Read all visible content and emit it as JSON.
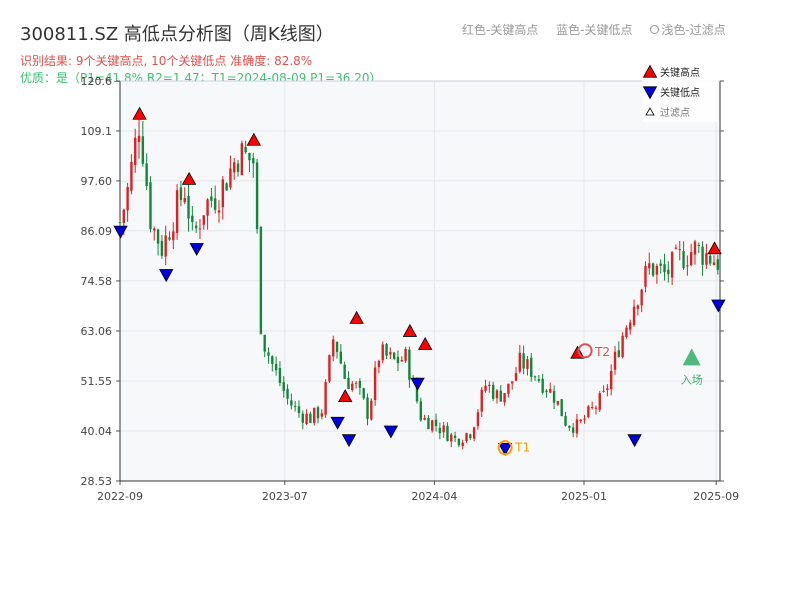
{
  "header": {
    "title": "300811.SZ 高低点分析图（周K线图）",
    "legend_red": "红色-关键高点",
    "legend_blue": "蓝色-关键低点",
    "legend_light": "浅色-过滤点",
    "result_line": "识别结果: 9个关键高点, 10个关键低点  准确度: 82.8%",
    "quality_line": "优质：是（P1=41.8%  R2=1.47；T1=2024-08-09 P1=36.20）"
  },
  "colors": {
    "up": "#e02020",
    "down": "#10883a",
    "high_marker": "#ff0000",
    "low_marker": "#0000dd",
    "entry": "#3cb371",
    "t1_ring": "#ff9900",
    "t2_ring": "#e05050"
  },
  "chart_data": {
    "type": "candlestick",
    "interval": "weekly",
    "ylim": [
      28.53,
      120.6
    ],
    "yticks": [
      "28.53",
      "40.04",
      "51.55",
      "63.06",
      "74.58",
      "86.09",
      "97.60",
      "109.1",
      "120.6"
    ],
    "xticks": [
      "2022-09",
      "2023-07",
      "2024-04",
      "2025-01",
      "2025-09"
    ],
    "x_range": [
      "2022-09-01",
      "2025-09-08"
    ],
    "grid": true,
    "legend_position": "top-right",
    "legend": [
      "关键高点",
      "关键低点",
      "过滤点"
    ],
    "close_path": [
      [
        "2022-09-02",
        88
      ],
      [
        "2022-09-16",
        96
      ],
      [
        "2022-10-07",
        112
      ],
      [
        "2022-10-28",
        88
      ],
      [
        "2022-11-18",
        82
      ],
      [
        "2022-12-09",
        90
      ],
      [
        "2022-12-30",
        96
      ],
      [
        "2023-01-13",
        84
      ],
      [
        "2023-02-03",
        92
      ],
      [
        "2023-03-03",
        95
      ],
      [
        "2023-04-07",
        104
      ],
      [
        "2023-05-05",
        102
      ],
      [
        "2023-05-19",
        62
      ],
      [
        "2023-06-09",
        55
      ],
      [
        "2023-07-07",
        47
      ],
      [
        "2023-07-28",
        44
      ],
      [
        "2023-08-18",
        43
      ],
      [
        "2023-09-08",
        45
      ],
      [
        "2023-09-29",
        62
      ],
      [
        "2023-10-20",
        52
      ],
      [
        "2023-11-10",
        50
      ],
      [
        "2023-12-01",
        44
      ],
      [
        "2023-12-22",
        58
      ],
      [
        "2024-01-19",
        56
      ],
      [
        "2024-02-09",
        57
      ],
      [
        "2024-03-08",
        43
      ],
      [
        "2024-03-29",
        42
      ],
      [
        "2024-04-19",
        40
      ],
      [
        "2024-05-10",
        38
      ],
      [
        "2024-06-07",
        40
      ],
      [
        "2024-07-05",
        51
      ],
      [
        "2024-07-26",
        48
      ],
      [
        "2024-08-16",
        50
      ],
      [
        "2024-09-06",
        56
      ],
      [
        "2024-09-27",
        54
      ],
      [
        "2024-10-18",
        51
      ],
      [
        "2024-11-08",
        48
      ],
      [
        "2024-11-29",
        42
      ],
      [
        "2024-12-20",
        41
      ],
      [
        "2025-01-10",
        44
      ],
      [
        "2025-02-07",
        48
      ],
      [
        "2025-03-07",
        60
      ],
      [
        "2025-04-04",
        70
      ],
      [
        "2025-05-02",
        78
      ],
      [
        "2025-05-30",
        76
      ],
      [
        "2025-06-27",
        80
      ],
      [
        "2025-07-25",
        82
      ],
      [
        "2025-09-05",
        79
      ]
    ],
    "key_highs": [
      {
        "date": "2022-10-07",
        "value": 113
      },
      {
        "date": "2023-01-06",
        "value": 98
      },
      {
        "date": "2023-05-05",
        "value": 107
      },
      {
        "date": "2023-10-20",
        "value": 48
      },
      {
        "date": "2023-11-10",
        "value": 66
      },
      {
        "date": "2024-02-16",
        "value": 63
      },
      {
        "date": "2024-03-15",
        "value": 60
      },
      {
        "date": "2024-12-20",
        "value": 58
      },
      {
        "date": "2025-08-29",
        "value": 82
      }
    ],
    "key_lows": [
      {
        "date": "2022-09-02",
        "value": 86
      },
      {
        "date": "2022-11-25",
        "value": 76
      },
      {
        "date": "2023-01-20",
        "value": 82
      },
      {
        "date": "2023-10-06",
        "value": 42
      },
      {
        "date": "2023-10-27",
        "value": 38
      },
      {
        "date": "2024-01-12",
        "value": 40
      },
      {
        "date": "2024-03-01",
        "value": 51
      },
      {
        "date": "2024-08-09",
        "value": 36
      },
      {
        "date": "2025-04-04",
        "value": 38
      },
      {
        "date": "2025-09-05",
        "value": 69
      }
    ],
    "annotations": [
      {
        "label": "T1",
        "date": "2024-08-09",
        "value": 36.2,
        "style": "t1_ring"
      },
      {
        "label": "T2",
        "date": "2025-01-03",
        "value": 58.5,
        "style": "t2_ring"
      },
      {
        "label": "入场",
        "date": "2025-07-18",
        "value": 57,
        "style": "entry"
      }
    ]
  }
}
